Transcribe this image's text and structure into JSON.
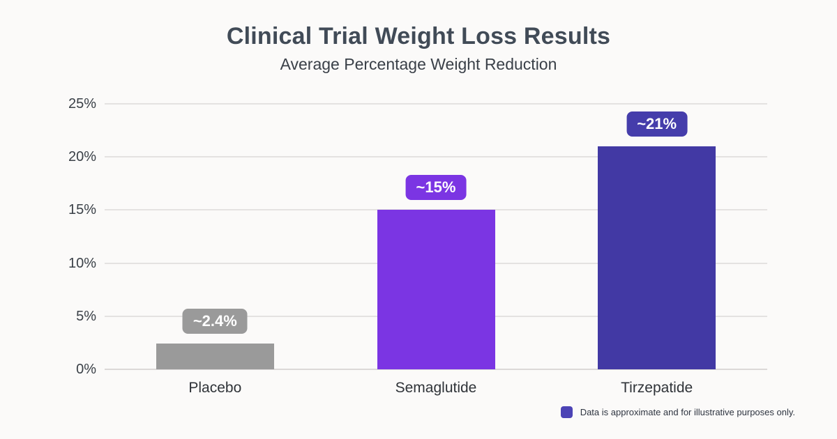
{
  "header": {
    "title": "Clinical Trial Weight Loss Results",
    "subtitle": "Average Percentage Weight Reduction"
  },
  "chart_data": {
    "type": "bar",
    "title": "Clinical Trial Weight Loss Results",
    "subtitle": "Average Percentage Weight Reduction",
    "categories": [
      "Placebo",
      "Semaglutide",
      "Tirzepatide"
    ],
    "values": [
      2.4,
      15,
      21
    ],
    "value_labels": [
      "~2.4%",
      "~15%",
      "~21%"
    ],
    "bar_colors": [
      "#9A9A9A",
      "#7B35E3",
      "#4239A4"
    ],
    "badge_colors": [
      "#9A9A9A",
      "#7B35E3",
      "#453DAB"
    ],
    "xlabel": "",
    "ylabel": "",
    "ylim": [
      0,
      25
    ],
    "yticks": [
      0,
      5,
      10,
      15,
      20,
      25
    ],
    "ytick_labels": [
      "0%",
      "5%",
      "10%",
      "15%",
      "20%",
      "25%"
    ],
    "grid": true,
    "note": {
      "text": "Data is approximate and for illustrative purposes only.",
      "swatch_color": "#4C43B5",
      "position": "bottom-right"
    }
  },
  "colors": {
    "background": "#FBFAF9",
    "title_text": "#414B57",
    "subtitle_text": "#3A4048",
    "axis_text": "#3A4047",
    "gridline": "#E4E2E1",
    "baseline": "#DBD9D8",
    "badge_text": "#FFFFFF",
    "note_text": "#2E3440"
  }
}
